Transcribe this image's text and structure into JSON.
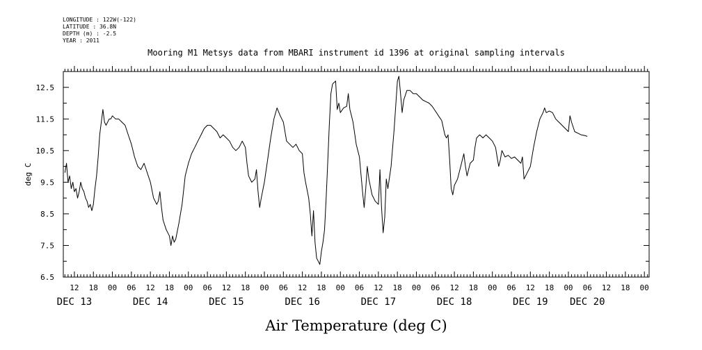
{
  "header": {
    "longitude": "LONGITUDE : 122W(-122)",
    "latitude": "LATITUDE : 36.8N",
    "depth": "DEPTH (m) : -2.5",
    "year": "YEAR : 2011"
  },
  "chart_data": {
    "type": "line",
    "title": "Mooring M1 Metsys data from MBARI instrument id 1396 at original sampling intervals",
    "xlabel": "Air Temperature (deg C)",
    "ylabel": "deg C",
    "ylim": [
      6.5,
      13.0
    ],
    "y_ticks": [
      "6.5",
      "7.5",
      "8.5",
      "9.5",
      "10.5",
      "11.5",
      "12.5"
    ],
    "x_unit": "hours since DEC 13 00:00",
    "xlim": [
      8.5,
      193.5
    ],
    "hour_ticks": [
      {
        "h": 12,
        "label": "12"
      },
      {
        "h": 18,
        "label": "18"
      },
      {
        "h": 24,
        "label": "00"
      },
      {
        "h": 30,
        "label": "06"
      },
      {
        "h": 36,
        "label": "12"
      },
      {
        "h": 42,
        "label": "18"
      },
      {
        "h": 48,
        "label": "00"
      },
      {
        "h": 54,
        "label": "06"
      },
      {
        "h": 60,
        "label": "12"
      },
      {
        "h": 66,
        "label": "18"
      },
      {
        "h": 72,
        "label": "00"
      },
      {
        "h": 78,
        "label": "06"
      },
      {
        "h": 84,
        "label": "12"
      },
      {
        "h": 90,
        "label": "18"
      },
      {
        "h": 96,
        "label": "00"
      },
      {
        "h": 102,
        "label": "06"
      },
      {
        "h": 108,
        "label": "12"
      },
      {
        "h": 114,
        "label": "18"
      },
      {
        "h": 120,
        "label": "00"
      },
      {
        "h": 126,
        "label": "06"
      },
      {
        "h": 132,
        "label": "12"
      },
      {
        "h": 138,
        "label": "18"
      },
      {
        "h": 144,
        "label": "00"
      },
      {
        "h": 150,
        "label": "06"
      },
      {
        "h": 156,
        "label": "12"
      },
      {
        "h": 162,
        "label": "18"
      },
      {
        "h": 168,
        "label": "00"
      },
      {
        "h": 174,
        "label": "06"
      },
      {
        "h": 180,
        "label": "12"
      },
      {
        "h": 186,
        "label": "18"
      },
      {
        "h": 192,
        "label": "00"
      }
    ],
    "day_labels": [
      {
        "h": 12,
        "label": "DEC 13"
      },
      {
        "h": 36,
        "label": "DEC 14"
      },
      {
        "h": 60,
        "label": "DEC 15"
      },
      {
        "h": 84,
        "label": "DEC 16"
      },
      {
        "h": 108,
        "label": "DEC 17"
      },
      {
        "h": 132,
        "label": "DEC 18"
      },
      {
        "h": 156,
        "label": "DEC 19"
      },
      {
        "h": 174,
        "label": "DEC 20"
      }
    ],
    "series": [
      {
        "color": "#000000",
        "points": [
          [
            9.0,
            9.8
          ],
          [
            9.5,
            10.1
          ],
          [
            10.0,
            9.5
          ],
          [
            10.5,
            9.7
          ],
          [
            11.0,
            9.3
          ],
          [
            11.5,
            9.5
          ],
          [
            12.0,
            9.2
          ],
          [
            12.5,
            9.3
          ],
          [
            13.0,
            9.0
          ],
          [
            13.5,
            9.2
          ],
          [
            14.0,
            9.5
          ],
          [
            14.5,
            9.3
          ],
          [
            15.0,
            9.2
          ],
          [
            15.5,
            9.0
          ],
          [
            16.0,
            8.9
          ],
          [
            16.5,
            8.7
          ],
          [
            17.0,
            8.8
          ],
          [
            17.5,
            8.6
          ],
          [
            18.0,
            8.8
          ],
          [
            18.5,
            9.3
          ],
          [
            19.0,
            9.7
          ],
          [
            19.5,
            10.3
          ],
          [
            20.0,
            11.0
          ],
          [
            20.5,
            11.4
          ],
          [
            21.0,
            11.8
          ],
          [
            21.5,
            11.4
          ],
          [
            22.0,
            11.3
          ],
          [
            22.5,
            11.4
          ],
          [
            23.0,
            11.5
          ],
          [
            23.5,
            11.5
          ],
          [
            24.0,
            11.6
          ],
          [
            25.0,
            11.5
          ],
          [
            26.0,
            11.5
          ],
          [
            27.0,
            11.4
          ],
          [
            28.0,
            11.3
          ],
          [
            29.0,
            11.0
          ],
          [
            30.0,
            10.7
          ],
          [
            31.0,
            10.3
          ],
          [
            32.0,
            10.0
          ],
          [
            33.0,
            9.9
          ],
          [
            34.0,
            10.1
          ],
          [
            35.0,
            9.8
          ],
          [
            36.0,
            9.5
          ],
          [
            37.0,
            9.0
          ],
          [
            38.0,
            8.8
          ],
          [
            38.5,
            8.9
          ],
          [
            39.0,
            9.2
          ],
          [
            39.5,
            8.7
          ],
          [
            40.0,
            8.3
          ],
          [
            41.0,
            8.0
          ],
          [
            42.0,
            7.8
          ],
          [
            42.5,
            7.5
          ],
          [
            43.0,
            7.8
          ],
          [
            43.5,
            7.6
          ],
          [
            44.0,
            7.7
          ],
          [
            45.0,
            8.2
          ],
          [
            46.0,
            8.8
          ],
          [
            47.0,
            9.7
          ],
          [
            48.0,
            10.1
          ],
          [
            49.0,
            10.4
          ],
          [
            50.0,
            10.6
          ],
          [
            51.0,
            10.8
          ],
          [
            52.0,
            11.0
          ],
          [
            53.0,
            11.2
          ],
          [
            54.0,
            11.3
          ],
          [
            55.0,
            11.3
          ],
          [
            56.0,
            11.2
          ],
          [
            57.0,
            11.1
          ],
          [
            58.0,
            10.9
          ],
          [
            59.0,
            11.0
          ],
          [
            60.0,
            10.9
          ],
          [
            61.0,
            10.8
          ],
          [
            62.0,
            10.6
          ],
          [
            63.0,
            10.5
          ],
          [
            64.0,
            10.6
          ],
          [
            65.0,
            10.8
          ],
          [
            66.0,
            10.6
          ],
          [
            66.5,
            10.1
          ],
          [
            67.0,
            9.7
          ],
          [
            68.0,
            9.5
          ],
          [
            69.0,
            9.6
          ],
          [
            69.5,
            9.9
          ],
          [
            70.0,
            9.2
          ],
          [
            70.5,
            8.7
          ],
          [
            71.0,
            9.0
          ],
          [
            72.0,
            9.5
          ],
          [
            73.0,
            10.2
          ],
          [
            74.0,
            10.9
          ],
          [
            75.0,
            11.5
          ],
          [
            76.0,
            11.85
          ],
          [
            77.0,
            11.6
          ],
          [
            78.0,
            11.4
          ],
          [
            79.0,
            10.8
          ],
          [
            80.0,
            10.7
          ],
          [
            81.0,
            10.6
          ],
          [
            82.0,
            10.7
          ],
          [
            83.0,
            10.5
          ],
          [
            84.0,
            10.4
          ],
          [
            84.5,
            9.8
          ],
          [
            85.0,
            9.5
          ],
          [
            86.0,
            9.0
          ],
          [
            86.5,
            8.5
          ],
          [
            87.0,
            7.8
          ],
          [
            87.5,
            8.6
          ],
          [
            88.0,
            7.6
          ],
          [
            88.5,
            7.1
          ],
          [
            89.0,
            7.0
          ],
          [
            89.5,
            6.9
          ],
          [
            90.0,
            7.3
          ],
          [
            90.5,
            7.6
          ],
          [
            91.0,
            8.0
          ],
          [
            91.5,
            9.0
          ],
          [
            92.0,
            10.1
          ],
          [
            92.5,
            11.3
          ],
          [
            93.0,
            12.3
          ],
          [
            93.5,
            12.6
          ],
          [
            94.0,
            12.65
          ],
          [
            94.5,
            12.7
          ],
          [
            95.0,
            11.8
          ],
          [
            95.5,
            12.0
          ],
          [
            96.0,
            11.7
          ],
          [
            97.0,
            11.85
          ],
          [
            98.0,
            11.9
          ],
          [
            98.5,
            12.3
          ],
          [
            99.0,
            11.8
          ],
          [
            99.5,
            11.6
          ],
          [
            100.0,
            11.4
          ],
          [
            101.0,
            10.7
          ],
          [
            102.0,
            10.3
          ],
          [
            103.0,
            9.2
          ],
          [
            103.5,
            8.7
          ],
          [
            104.0,
            9.3
          ],
          [
            104.5,
            10.0
          ],
          [
            105.0,
            9.6
          ],
          [
            106.0,
            9.1
          ],
          [
            107.0,
            8.9
          ],
          [
            108.0,
            8.8
          ],
          [
            108.5,
            9.9
          ],
          [
            109.0,
            8.7
          ],
          [
            109.5,
            7.9
          ],
          [
            110.0,
            8.4
          ],
          [
            110.5,
            9.6
          ],
          [
            111.0,
            9.3
          ],
          [
            112.0,
            10.0
          ],
          [
            113.0,
            11.2
          ],
          [
            114.0,
            12.7
          ],
          [
            114.5,
            12.85
          ],
          [
            115.0,
            12.3
          ],
          [
            115.5,
            11.7
          ],
          [
            116.0,
            12.1
          ],
          [
            117.0,
            12.4
          ],
          [
            118.0,
            12.4
          ],
          [
            119.0,
            12.3
          ],
          [
            120.0,
            12.3
          ],
          [
            121.0,
            12.2
          ],
          [
            122.0,
            12.1
          ],
          [
            123.0,
            12.05
          ],
          [
            124.0,
            12.0
          ],
          [
            125.0,
            11.9
          ],
          [
            126.0,
            11.75
          ],
          [
            127.0,
            11.6
          ],
          [
            128.0,
            11.45
          ],
          [
            129.0,
            11.0
          ],
          [
            129.5,
            10.9
          ],
          [
            130.0,
            11.0
          ],
          [
            130.5,
            10.2
          ],
          [
            131.0,
            9.3
          ],
          [
            131.5,
            9.1
          ],
          [
            132.0,
            9.4
          ],
          [
            133.0,
            9.6
          ],
          [
            134.0,
            10.0
          ],
          [
            135.0,
            10.4
          ],
          [
            135.5,
            10.0
          ],
          [
            136.0,
            9.7
          ],
          [
            137.0,
            10.1
          ],
          [
            138.0,
            10.2
          ],
          [
            138.5,
            10.6
          ],
          [
            139.0,
            10.9
          ],
          [
            140.0,
            11.0
          ],
          [
            141.0,
            10.9
          ],
          [
            142.0,
            11.0
          ],
          [
            143.0,
            10.9
          ],
          [
            144.0,
            10.8
          ],
          [
            145.0,
            10.6
          ],
          [
            145.5,
            10.3
          ],
          [
            146.0,
            10.0
          ],
          [
            146.5,
            10.2
          ],
          [
            147.0,
            10.5
          ],
          [
            148.0,
            10.3
          ],
          [
            149.0,
            10.35
          ],
          [
            150.0,
            10.25
          ],
          [
            151.0,
            10.3
          ],
          [
            152.0,
            10.2
          ],
          [
            153.0,
            10.1
          ],
          [
            153.5,
            10.3
          ],
          [
            154.0,
            9.6
          ],
          [
            154.5,
            9.7
          ],
          [
            155.0,
            9.8
          ],
          [
            156.0,
            10.0
          ],
          [
            157.0,
            10.6
          ],
          [
            158.0,
            11.1
          ],
          [
            159.0,
            11.5
          ],
          [
            160.0,
            11.7
          ],
          [
            160.5,
            11.85
          ],
          [
            161.0,
            11.7
          ],
          [
            162.0,
            11.75
          ],
          [
            163.0,
            11.7
          ],
          [
            164.0,
            11.5
          ],
          [
            165.0,
            11.4
          ],
          [
            166.0,
            11.3
          ],
          [
            167.0,
            11.2
          ],
          [
            168.0,
            11.1
          ],
          [
            168.5,
            11.6
          ],
          [
            169.0,
            11.4
          ],
          [
            170.0,
            11.1
          ],
          [
            171.0,
            11.05
          ],
          [
            172.0,
            11.0
          ],
          [
            173.0,
            10.98
          ],
          [
            174.0,
            10.95
          ]
        ]
      }
    ]
  }
}
